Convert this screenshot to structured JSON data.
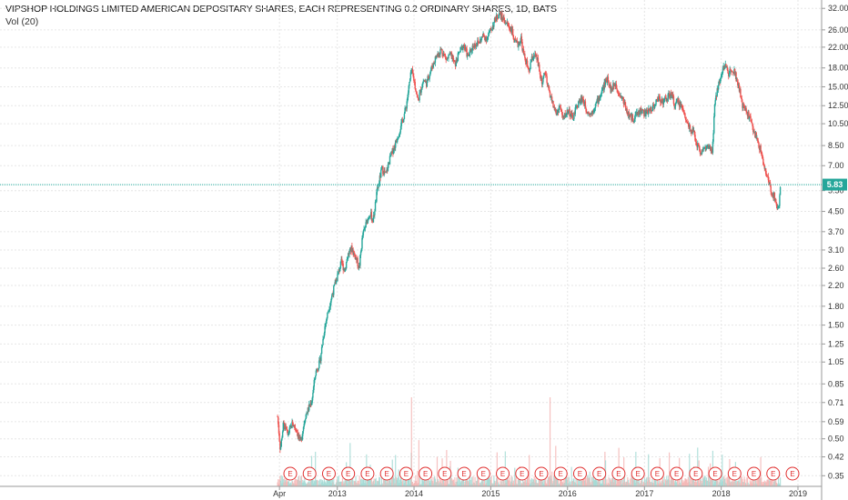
{
  "header": {
    "title": "VIPSHOP HOLDINGS LIMITED AMERICAN DEPOSITARY SHARES, EACH REPRESENTING 0.2 ORDINARY SHARES, 1D, BATS",
    "indicator": "Vol (20)"
  },
  "colors": {
    "up": "#26a69a",
    "down": "#ef5350",
    "price_line": "#26a69a",
    "grid": "#e6e6e6",
    "earnings": "#e03030"
  },
  "chart_data": {
    "type": "line",
    "scale": "log",
    "xlabel": "",
    "ylabel": "",
    "x_ticks": [
      "Apr",
      "2013",
      "2014",
      "2015",
      "2016",
      "2017",
      "2018",
      "2019"
    ],
    "y_ticks": [
      "32.00",
      "26.00",
      "22.00",
      "18.00",
      "15.00",
      "12.50",
      "10.50",
      "8.50",
      "7.00",
      "5.50",
      "4.50",
      "3.70",
      "3.10",
      "2.60",
      "2.20",
      "1.80",
      "1.50",
      "1.25",
      "1.05",
      "0.85",
      "0.71",
      "0.59",
      "0.50",
      "0.42",
      "0.35"
    ],
    "ylim": [
      0.33,
      33.5
    ],
    "current_price": "5.83",
    "earnings_marker": "E",
    "earnings_count": 27,
    "series": [
      {
        "values": [
          [
            "2012-03-23",
            0.62
          ],
          [
            "2012-04-05",
            0.45
          ],
          [
            "2012-04-20",
            0.58
          ],
          [
            "2012-05-10",
            0.52
          ],
          [
            "2012-06-01",
            0.58
          ],
          [
            "2012-06-20",
            0.55
          ],
          [
            "2012-07-10",
            0.48
          ],
          [
            "2012-08-01",
            0.62
          ],
          [
            "2012-09-01",
            0.72
          ],
          [
            "2012-09-20",
            0.95
          ],
          [
            "2012-10-10",
            1.05
          ],
          [
            "2012-11-01",
            1.45
          ],
          [
            "2012-11-20",
            1.75
          ],
          [
            "2012-12-10",
            2.05
          ],
          [
            "2013-01-01",
            2.4
          ],
          [
            "2013-01-20",
            2.75
          ],
          [
            "2013-02-05",
            2.55
          ],
          [
            "2013-02-20",
            2.95
          ],
          [
            "2013-03-10",
            3.15
          ],
          [
            "2013-04-01",
            2.85
          ],
          [
            "2013-04-15",
            2.6
          ],
          [
            "2013-05-01",
            3.55
          ],
          [
            "2013-05-20",
            4.05
          ],
          [
            "2013-06-05",
            4.45
          ],
          [
            "2013-06-20",
            4.1
          ],
          [
            "2013-07-10",
            5.5
          ],
          [
            "2013-08-01",
            6.8
          ],
          [
            "2013-08-20",
            6.4
          ],
          [
            "2013-09-10",
            7.6
          ],
          [
            "2013-10-01",
            8.5
          ],
          [
            "2013-10-20",
            9.6
          ],
          [
            "2013-11-10",
            11.0
          ],
          [
            "2013-11-25",
            12.5
          ],
          [
            "2013-12-10",
            15.5
          ],
          [
            "2013-12-20",
            17.5
          ],
          [
            "2014-01-01",
            16.0
          ],
          [
            "2014-01-20",
            13.0
          ],
          [
            "2014-02-01",
            14.5
          ],
          [
            "2014-02-15",
            16.0
          ],
          [
            "2014-03-01",
            15.5
          ],
          [
            "2014-03-20",
            17.5
          ],
          [
            "2014-04-15",
            20.0
          ],
          [
            "2014-05-10",
            21.5
          ],
          [
            "2014-06-05",
            19.5
          ],
          [
            "2014-06-25",
            20.5
          ],
          [
            "2014-07-15",
            18.5
          ],
          [
            "2014-08-05",
            21.0
          ],
          [
            "2014-08-25",
            22.5
          ],
          [
            "2014-09-15",
            20.0
          ],
          [
            "2014-10-10",
            22.5
          ],
          [
            "2014-11-05",
            23.0
          ],
          [
            "2014-11-25",
            24.5
          ],
          [
            "2014-12-15",
            24.0
          ],
          [
            "2015-01-05",
            26.5
          ],
          [
            "2015-01-25",
            29.0
          ],
          [
            "2015-02-10",
            30.5
          ],
          [
            "2015-02-28",
            29.0
          ],
          [
            "2015-03-20",
            27.5
          ],
          [
            "2015-04-10",
            26.0
          ],
          [
            "2015-04-25",
            23.0
          ],
          [
            "2015-05-10",
            22.5
          ],
          [
            "2015-05-25",
            24.0
          ],
          [
            "2015-06-05",
            20.5
          ],
          [
            "2015-06-20",
            19.0
          ],
          [
            "2015-07-01",
            17.0
          ],
          [
            "2015-07-10",
            19.0
          ],
          [
            "2015-07-25",
            20.5
          ],
          [
            "2015-08-10",
            19.5
          ],
          [
            "2015-08-25",
            16.5
          ],
          [
            "2015-09-05",
            15.5
          ],
          [
            "2015-09-15",
            17.5
          ],
          [
            "2015-09-28",
            15.0
          ],
          [
            "2015-10-10",
            14.0
          ],
          [
            "2015-10-25",
            12.5
          ],
          [
            "2015-11-10",
            11.5
          ],
          [
            "2015-11-25",
            12.5
          ],
          [
            "2015-12-10",
            11.0
          ],
          [
            "2016-01-05",
            12.0
          ],
          [
            "2016-01-25",
            11.0
          ],
          [
            "2016-02-15",
            12.5
          ],
          [
            "2016-03-10",
            13.5
          ],
          [
            "2016-04-01",
            12.0
          ],
          [
            "2016-04-20",
            11.5
          ],
          [
            "2016-05-10",
            12.5
          ],
          [
            "2016-06-01",
            13.5
          ],
          [
            "2016-06-20",
            15.0
          ],
          [
            "2016-07-10",
            16.5
          ],
          [
            "2016-07-25",
            14.5
          ],
          [
            "2016-08-15",
            15.5
          ],
          [
            "2016-09-05",
            14.0
          ],
          [
            "2016-09-25",
            13.0
          ],
          [
            "2016-10-15",
            11.5
          ],
          [
            "2016-11-05",
            11.0
          ],
          [
            "2016-11-25",
            11.5
          ],
          [
            "2016-12-15",
            12.0
          ],
          [
            "2017-01-05",
            11.5
          ],
          [
            "2017-01-25",
            12.0
          ],
          [
            "2017-02-15",
            12.5
          ],
          [
            "2017-03-10",
            13.5
          ],
          [
            "2017-04-01",
            13.0
          ],
          [
            "2017-04-20",
            13.5
          ],
          [
            "2017-05-10",
            14.0
          ],
          [
            "2017-05-25",
            12.5
          ],
          [
            "2017-06-10",
            13.0
          ],
          [
            "2017-06-25",
            12.5
          ],
          [
            "2017-07-10",
            11.5
          ],
          [
            "2017-07-25",
            10.5
          ],
          [
            "2017-08-10",
            10.0
          ],
          [
            "2017-08-25",
            9.5
          ],
          [
            "2017-09-10",
            8.5
          ],
          [
            "2017-09-25",
            8.0
          ],
          [
            "2017-10-10",
            8.2
          ],
          [
            "2017-10-25",
            8.4
          ],
          [
            "2017-11-05",
            8.2
          ],
          [
            "2017-11-20",
            8.0
          ],
          [
            "2017-12-01",
            12.5
          ],
          [
            "2017-12-10",
            14.0
          ],
          [
            "2017-12-20",
            15.5
          ],
          [
            "2018-01-05",
            17.5
          ],
          [
            "2018-01-20",
            18.5
          ],
          [
            "2018-02-05",
            17.0
          ],
          [
            "2018-02-20",
            18.0
          ],
          [
            "2018-03-05",
            17.5
          ],
          [
            "2018-03-20",
            15.5
          ],
          [
            "2018-03-28",
            14.8
          ],
          [
            "2018-04-10",
            12.5
          ],
          [
            "2018-04-25",
            12.0
          ],
          [
            "2018-05-10",
            11.5
          ],
          [
            "2018-05-25",
            10.5
          ],
          [
            "2018-06-10",
            9.5
          ],
          [
            "2018-06-25",
            8.8
          ],
          [
            "2018-07-10",
            8.0
          ],
          [
            "2018-07-25",
            6.8
          ],
          [
            "2018-08-10",
            6.2
          ],
          [
            "2018-08-25",
            5.5
          ],
          [
            "2018-09-10",
            5.2
          ],
          [
            "2018-09-25",
            4.7
          ],
          [
            "2018-10-01",
            4.6
          ],
          [
            "2018-10-10",
            5.83
          ]
        ]
      }
    ]
  }
}
